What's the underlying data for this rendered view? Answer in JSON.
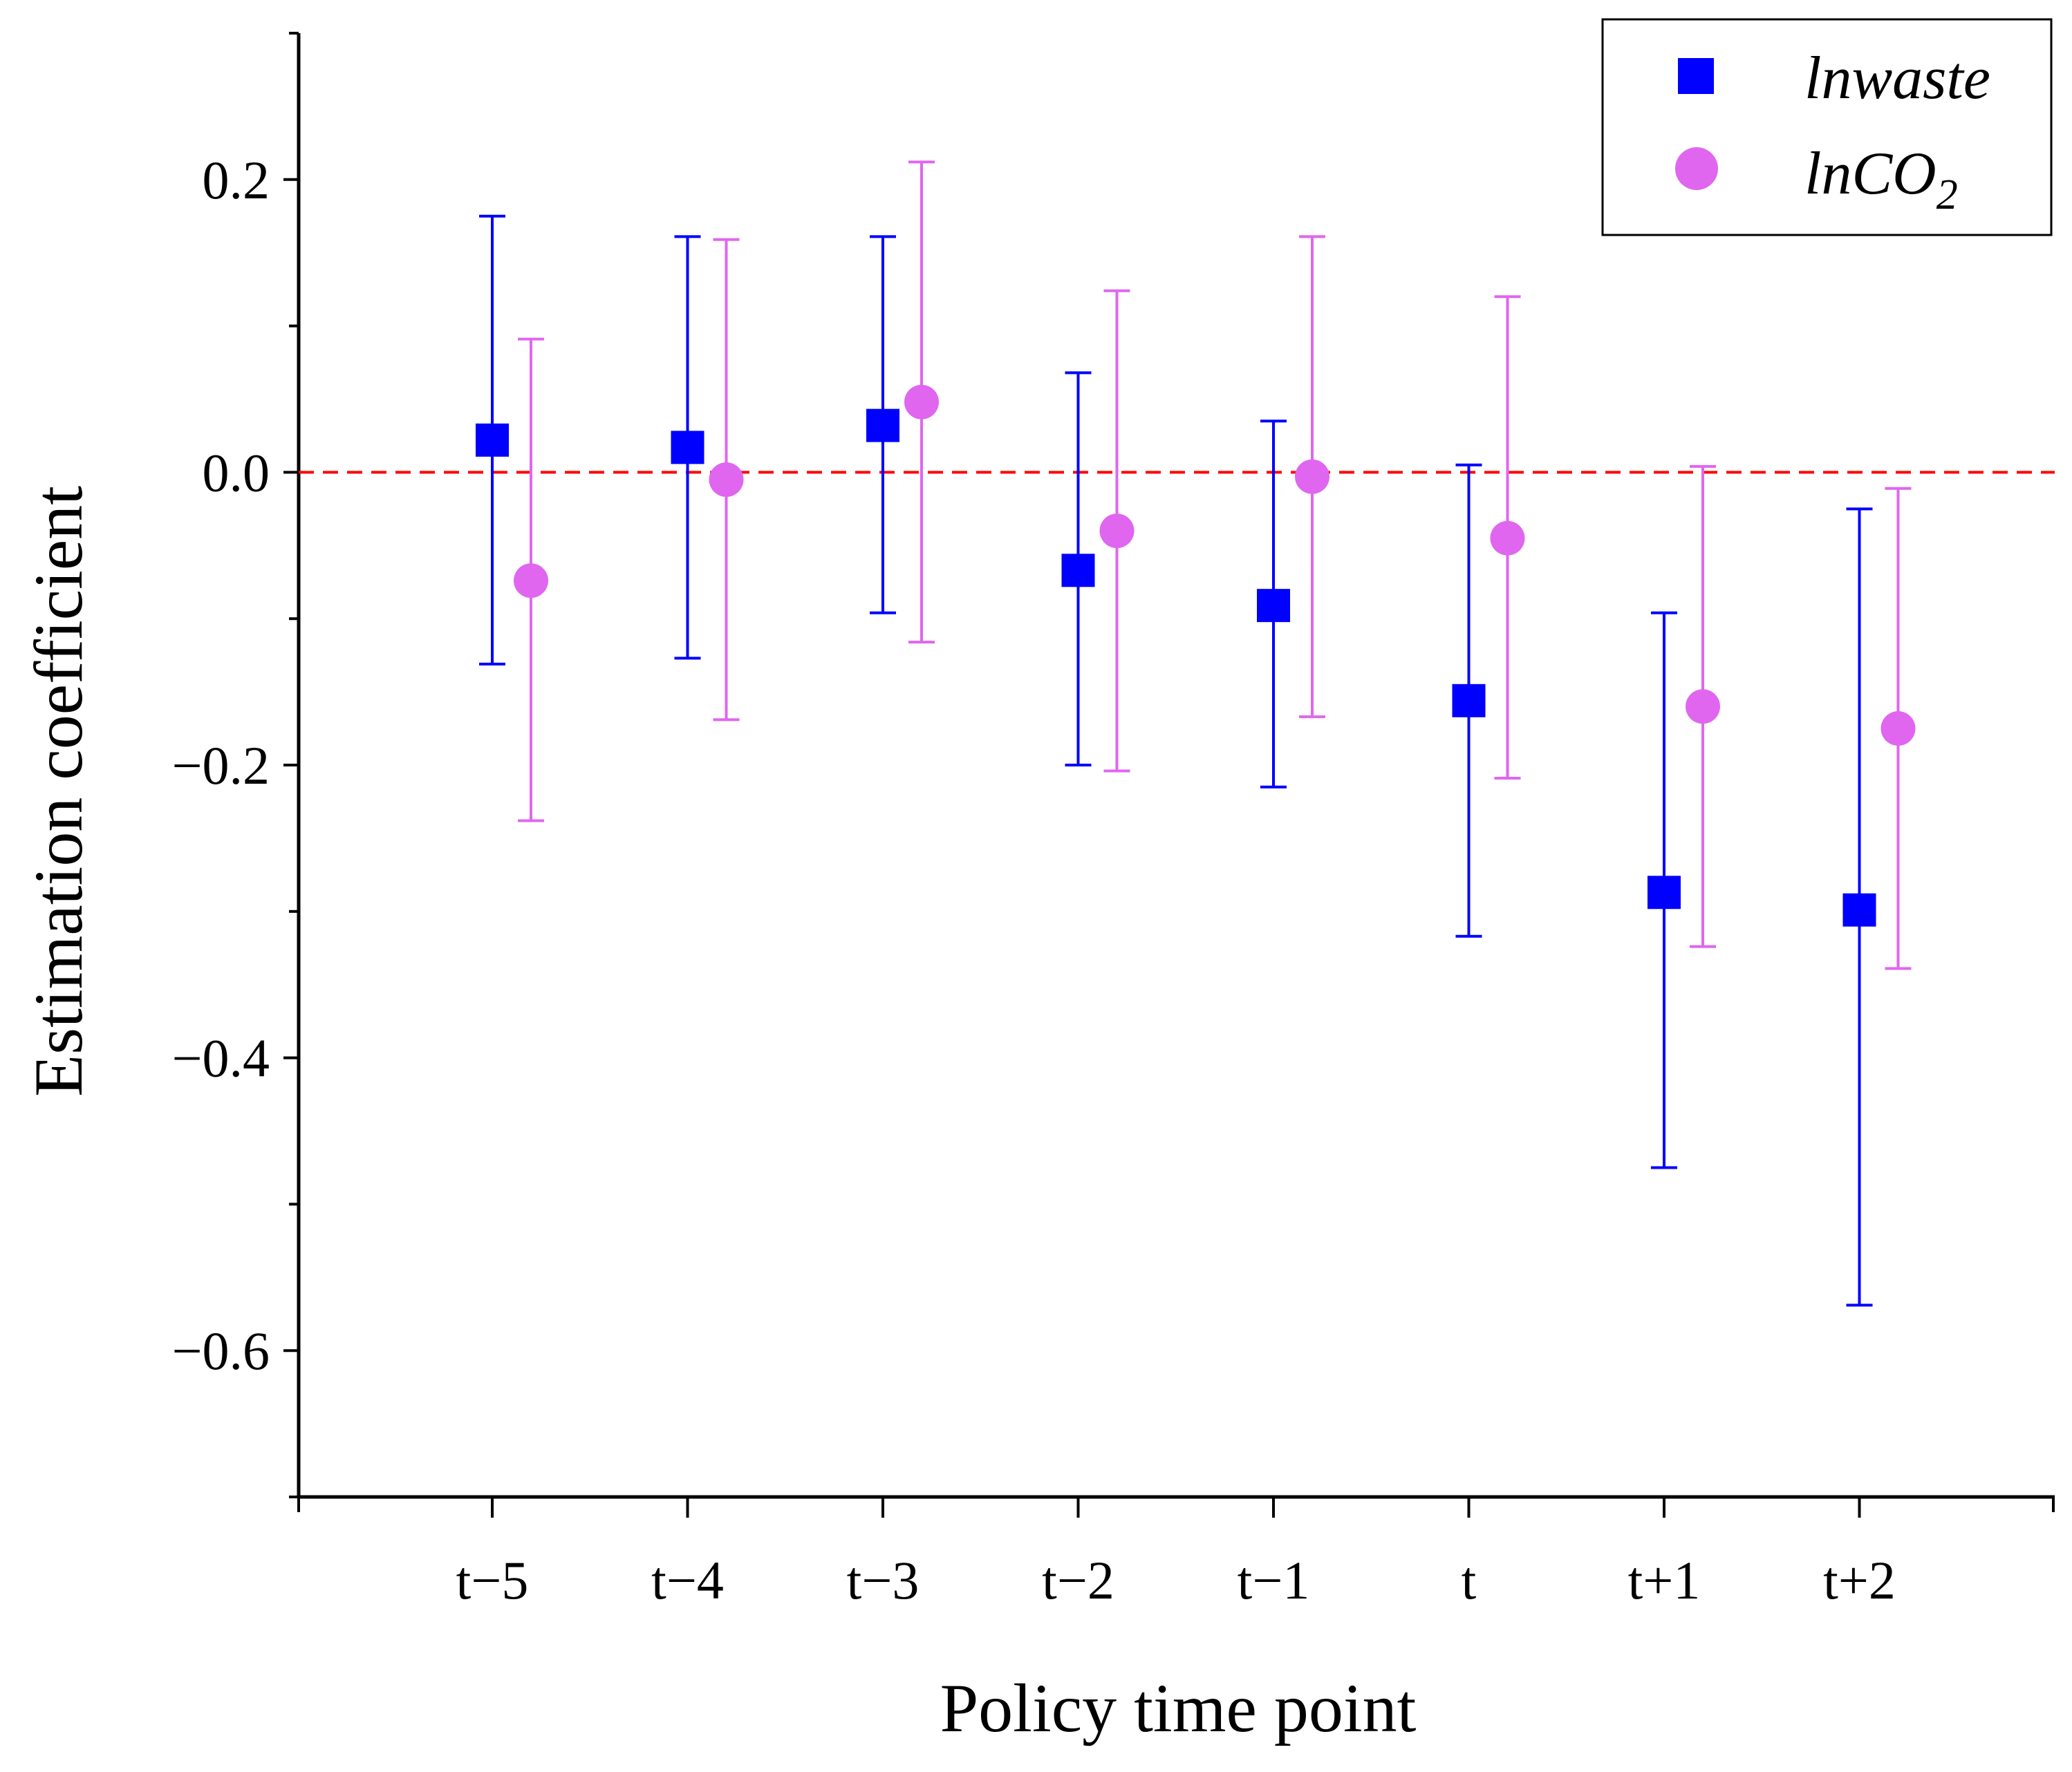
{
  "chart_data": {
    "type": "scatter",
    "subtype": "coefficient plot with error bars",
    "title": "",
    "xlabel": "Policy time point",
    "ylabel": "Estimation coefficient",
    "categories": [
      "t−5",
      "t−4",
      "t−3",
      "t−2",
      "t−1",
      "t",
      "t+1",
      "t+2"
    ],
    "ylim": [
      -0.7,
      0.3
    ],
    "yticks": [
      {
        "value": 0.2,
        "label": "0.2"
      },
      {
        "value": 0.0,
        "label": "0.0"
      },
      {
        "value": -0.2,
        "label": "−0.2"
      },
      {
        "value": -0.4,
        "label": "−0.4"
      },
      {
        "value": -0.6,
        "label": "−0.6"
      }
    ],
    "reference_line": {
      "value": 0.0,
      "style": "dashed",
      "color": "#ff0000"
    },
    "legend": {
      "position": "top-right"
    },
    "series": [
      {
        "name": "lnwaste",
        "marker": "square",
        "color": "#0000ff",
        "values": [
          0.022,
          0.017,
          0.032,
          -0.067,
          -0.091,
          -0.156,
          -0.287,
          -0.299
        ],
        "lower": [
          -0.131,
          -0.127,
          -0.096,
          -0.2,
          -0.215,
          -0.317,
          -0.475,
          -0.569
        ],
        "upper": [
          0.175,
          0.161,
          0.161,
          0.068,
          0.035,
          0.005,
          -0.096,
          -0.025
        ]
      },
      {
        "name": "lnCO",
        "name_subscript": "2",
        "marker": "circle",
        "color": "#e066f0",
        "values": [
          -0.074,
          -0.005,
          0.048,
          -0.04,
          -0.003,
          -0.045,
          -0.16,
          -0.175
        ],
        "lower": [
          -0.238,
          -0.169,
          -0.116,
          -0.204,
          -0.167,
          -0.209,
          -0.324,
          -0.339
        ],
        "upper": [
          0.091,
          0.159,
          0.212,
          0.124,
          0.161,
          0.12,
          0.004,
          -0.011
        ]
      }
    ]
  }
}
